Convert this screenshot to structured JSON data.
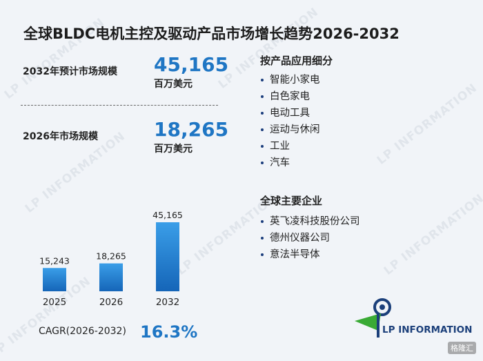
{
  "title": "全球BLDC电机主控及驱动产品市场增长趋势2026-2032",
  "kpis": [
    {
      "label": "2032年预计市场规模",
      "value": "45,165",
      "unit": "百万美元"
    },
    {
      "label": "2026年市场规模",
      "value": "18,265",
      "unit": "百万美元"
    }
  ],
  "segments": {
    "heading": "按产品应用细分",
    "items": [
      "智能小家电",
      "白色家电",
      "电动工具",
      "运动与休闲",
      "工业",
      "汽车"
    ]
  },
  "companies": {
    "heading": "全球主要企业",
    "items": [
      "英飞凌科技股份公司",
      "德州仪器公司",
      "意法半导体"
    ]
  },
  "chart_data": {
    "type": "bar",
    "categories": [
      "2025",
      "2026",
      "2032"
    ],
    "values": [
      15243,
      18265,
      45165
    ],
    "data_labels": [
      "15,243",
      "18,265",
      "45,165"
    ],
    "ylim": [
      0,
      45165
    ],
    "grid": false,
    "bar_color_top": "#3a9ee8",
    "bar_color_bottom": "#1565b8"
  },
  "cagr": {
    "label": "CAGR(2026-2032)",
    "value": "16.3%"
  },
  "logo": {
    "text": "LP INFORMATION"
  },
  "watermark": "LP INFORMATION",
  "corner_badge": "格隆汇",
  "colors": {
    "accent": "#1f76c4",
    "background": "#f1f4f8",
    "logo_navy": "#1b3f7a",
    "logo_green": "#3aaa35"
  }
}
